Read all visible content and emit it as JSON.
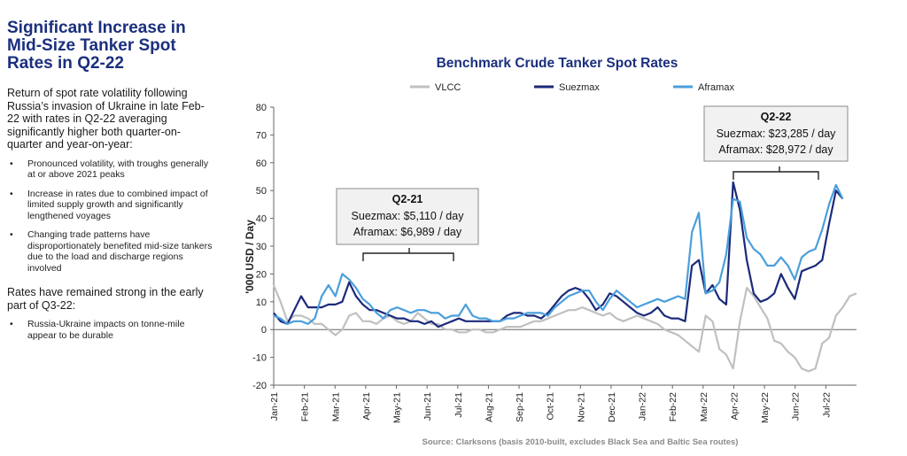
{
  "sidebar": {
    "title": "Significant Increase in Mid-Size Tanker Spot Rates in Q2-22",
    "intro": "Return of spot rate volatility following Russia’s invasion of Ukraine in late Feb-22 with rates in Q2-22 averaging significantly higher both quarter-on-quarter and year-on-year:",
    "bullets": [
      "Pronounced volatility, with troughs generally at or above 2021 peaks",
      "Increase in rates due to combined impact of limited supply growth and significantly lengthened voyages",
      "Changing trade patterns have disproportionately benefited mid-size tankers due to the load and discharge regions involved"
    ],
    "subheading": "Rates have remained strong in the early part of Q3-22:",
    "bullets2": [
      "Russia-Ukraine impacts on tonne-mile appear to be durable"
    ]
  },
  "source": "Source: Clarksons (basis 2010-built, excludes Black Sea and Baltic Sea routes)",
  "colors": {
    "vlcc": "#c0c0c0",
    "suezmax": "#1b2a7a",
    "aframax": "#4a9fdc",
    "title": "#1b2f7d"
  },
  "chart_data": {
    "type": "line",
    "title": "Benchmark Crude Tanker Spot Rates",
    "ylabel": "'000 USD / Day",
    "ylim": [
      -20,
      80
    ],
    "yticks": [
      -20,
      -10,
      0,
      10,
      20,
      30,
      40,
      50,
      60,
      70,
      80
    ],
    "xticks": [
      "Jan-21",
      "Feb-21",
      "Mar-21",
      "Apr-21",
      "May-21",
      "Jun-21",
      "Jul-21",
      "Aug-21",
      "Sep-21",
      "Oct-21",
      "Nov-21",
      "Dec-21",
      "Jan-22",
      "Feb-22",
      "Mar-22",
      "Apr-22",
      "May-22",
      "Jun-22",
      "Jul-22"
    ],
    "legend_position": "top",
    "grid": false,
    "series": [
      {
        "name": "VLCC",
        "color": "#c0c0c0",
        "values": [
          16,
          10,
          3,
          5,
          5,
          4,
          2,
          2,
          0,
          -2,
          0,
          5,
          6,
          3,
          3,
          2,
          4,
          5,
          3,
          2,
          3,
          6,
          4,
          2,
          2,
          0,
          0,
          -1,
          -1,
          0,
          0,
          -1,
          -1,
          0,
          1,
          1,
          1,
          2,
          3,
          3,
          4,
          5,
          6,
          7,
          7,
          8,
          7,
          6,
          5,
          6,
          4,
          3,
          4,
          5,
          4,
          3,
          2,
          0,
          -1,
          -2,
          -4,
          -6,
          -8,
          5,
          3,
          -7,
          -9,
          -14,
          3,
          15,
          12,
          8,
          4,
          -4,
          -5,
          -8,
          -10,
          -14,
          -15,
          -14,
          -5,
          -3,
          5,
          8,
          12,
          13
        ]
      },
      {
        "name": "Suezmax",
        "color": "#1b2a7a",
        "values": [
          6,
          3,
          2,
          7,
          12,
          8,
          8,
          8,
          9,
          9,
          10,
          17,
          12,
          9,
          7,
          7,
          6,
          5,
          4,
          4,
          3,
          3,
          2,
          3,
          1,
          2,
          3,
          4,
          3,
          3,
          3,
          3,
          3,
          3,
          5,
          6,
          6,
          5,
          5,
          4,
          6,
          9,
          12,
          14,
          15,
          14,
          11,
          7,
          9,
          13,
          12,
          10,
          8,
          6,
          5,
          6,
          8,
          5,
          4,
          4,
          3,
          23,
          25,
          13,
          16,
          11,
          9,
          53,
          43,
          25,
          13,
          10,
          11,
          13,
          20,
          15,
          11,
          21,
          22,
          23,
          25,
          38,
          50,
          47
        ]
      },
      {
        "name": "Aframax",
        "color": "#4a9fdc",
        "values": [
          5,
          4,
          2,
          3,
          3,
          2,
          4,
          12,
          16,
          12,
          20,
          18,
          15,
          11,
          9,
          6,
          4,
          7,
          8,
          7,
          6,
          7,
          7,
          6,
          6,
          4,
          5,
          5,
          9,
          5,
          4,
          4,
          3,
          3,
          4,
          4,
          5,
          6,
          6,
          6,
          5,
          8,
          10,
          12,
          13,
          14,
          14,
          10,
          7,
          11,
          14,
          12,
          10,
          8,
          9,
          10,
          11,
          10,
          11,
          12,
          11,
          35,
          42,
          13,
          14,
          17,
          27,
          47,
          46,
          33,
          29,
          27,
          23,
          23,
          26,
          23,
          18,
          26,
          28,
          29,
          36,
          45,
          52,
          47
        ]
      }
    ],
    "annotations": [
      {
        "title": "Q2-21",
        "lines": [
          "Suezmax: $5,110 / day",
          "Aframax:  $6,989 / day"
        ]
      },
      {
        "title": "Q2-22",
        "lines": [
          "Suezmax: $23,285 / day",
          "Aframax:  $28,972 / day"
        ]
      }
    ]
  }
}
